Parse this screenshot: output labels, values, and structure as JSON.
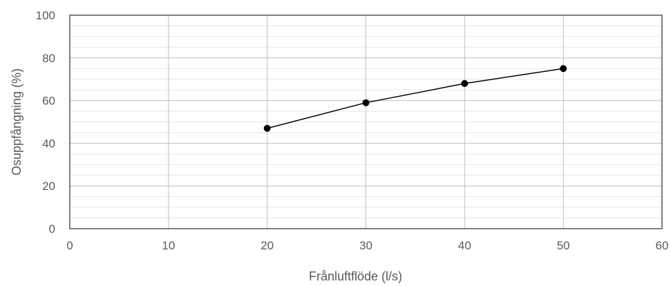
{
  "chart_data": {
    "type": "scatter",
    "title": "",
    "xlabel": "Frånluftflöde (l/s)",
    "ylabel": "Osuppfångning (%)",
    "xlim": [
      0,
      60
    ],
    "ylim": [
      0,
      100
    ],
    "x_ticks": [
      0,
      10,
      20,
      30,
      40,
      50,
      60
    ],
    "y_ticks": [
      0,
      20,
      40,
      60,
      80,
      100
    ],
    "grid": "major and minor",
    "legend": "none",
    "series": [
      {
        "x": [
          20,
          30,
          40,
          50
        ],
        "y": [
          47,
          59,
          68,
          75
        ]
      }
    ],
    "colors": {
      "series": "#000000",
      "major_grid": "#bfbfbf",
      "minor_grid": "#e6e6e6",
      "axis_frame": "#000000",
      "text": "#595959"
    }
  }
}
